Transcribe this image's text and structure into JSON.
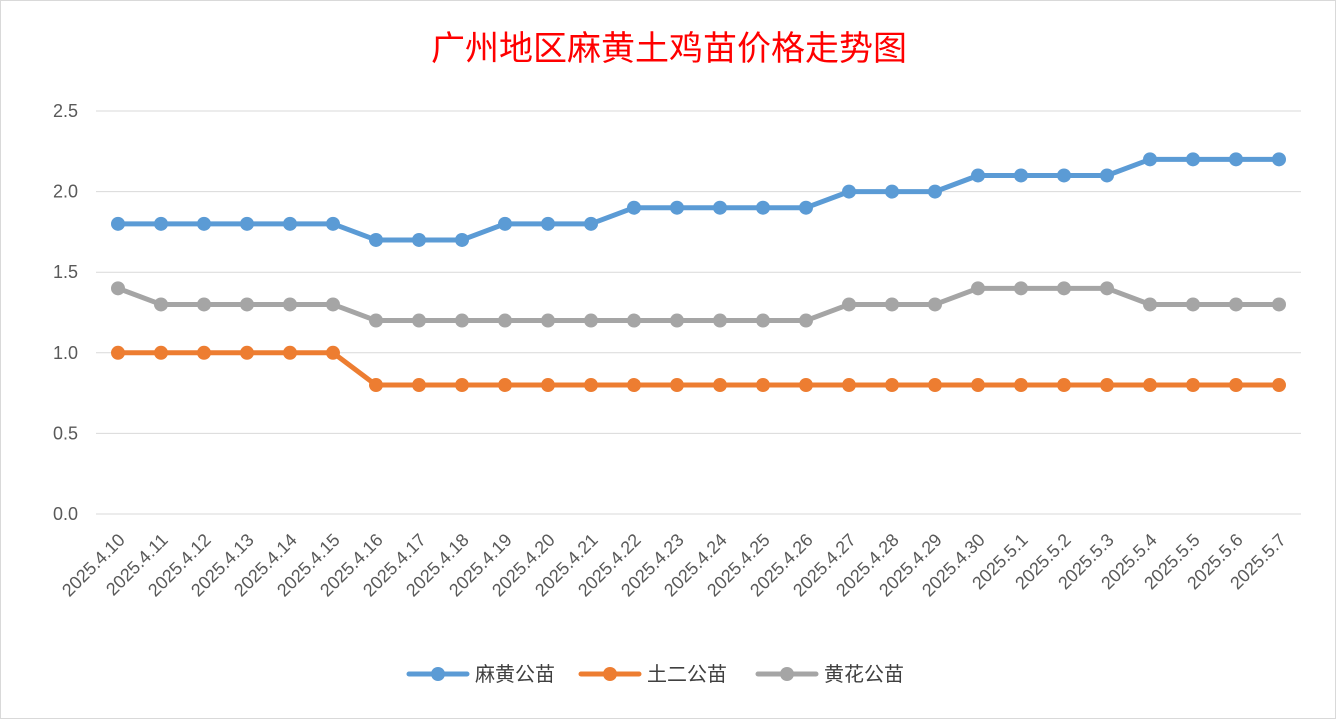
{
  "chart_data": {
    "type": "line",
    "title": "广州地区麻黄土鸡苗价格走势图",
    "xlabel": "",
    "ylabel": "",
    "ylim": [
      0,
      2.5
    ],
    "yticks": [
      "0.0",
      "0.5",
      "1.0",
      "1.5",
      "2.0",
      "2.5"
    ],
    "grid": true,
    "legend_position": "bottom",
    "categories": [
      "2025.4.10",
      "2025.4.11",
      "2025.4.12",
      "2025.4.13",
      "2025.4.14",
      "2025.4.15",
      "2025.4.16",
      "2025.4.17",
      "2025.4.18",
      "2025.4.19",
      "2025.4.20",
      "2025.4.21",
      "2025.4.22",
      "2025.4.23",
      "2025.4.24",
      "2025.4.25",
      "2025.4.26",
      "2025.4.27",
      "2025.4.28",
      "2025.4.29",
      "2025.4.30",
      "2025.5.1",
      "2025.5.2",
      "2025.5.3",
      "2025.5.4",
      "2025.5.5",
      "2025.5.6",
      "2025.5.7"
    ],
    "series": [
      {
        "name": "麻黄公苗",
        "color": "#5b9bd5",
        "values": [
          1.8,
          1.8,
          1.8,
          1.8,
          1.8,
          1.8,
          1.7,
          1.7,
          1.7,
          1.8,
          1.8,
          1.8,
          1.9,
          1.9,
          1.9,
          1.9,
          1.9,
          2.0,
          2.0,
          2.0,
          2.1,
          2.1,
          2.1,
          2.1,
          2.2,
          2.2,
          2.2,
          2.2
        ]
      },
      {
        "name": "土二公苗",
        "color": "#ed7d31",
        "values": [
          1.0,
          1.0,
          1.0,
          1.0,
          1.0,
          1.0,
          0.8,
          0.8,
          0.8,
          0.8,
          0.8,
          0.8,
          0.8,
          0.8,
          0.8,
          0.8,
          0.8,
          0.8,
          0.8,
          0.8,
          0.8,
          0.8,
          0.8,
          0.8,
          0.8,
          0.8,
          0.8,
          0.8
        ]
      },
      {
        "name": "黄花公苗",
        "color": "#a5a5a5",
        "values": [
          1.4,
          1.3,
          1.3,
          1.3,
          1.3,
          1.3,
          1.2,
          1.2,
          1.2,
          1.2,
          1.2,
          1.2,
          1.2,
          1.2,
          1.2,
          1.2,
          1.2,
          1.3,
          1.3,
          1.3,
          1.4,
          1.4,
          1.4,
          1.4,
          1.3,
          1.3,
          1.3,
          1.3
        ]
      }
    ],
    "colors": {
      "title": "#ff0000",
      "gridline": "#d9d9d9",
      "tick_text": "#595959",
      "legend_text": "#404040"
    }
  }
}
